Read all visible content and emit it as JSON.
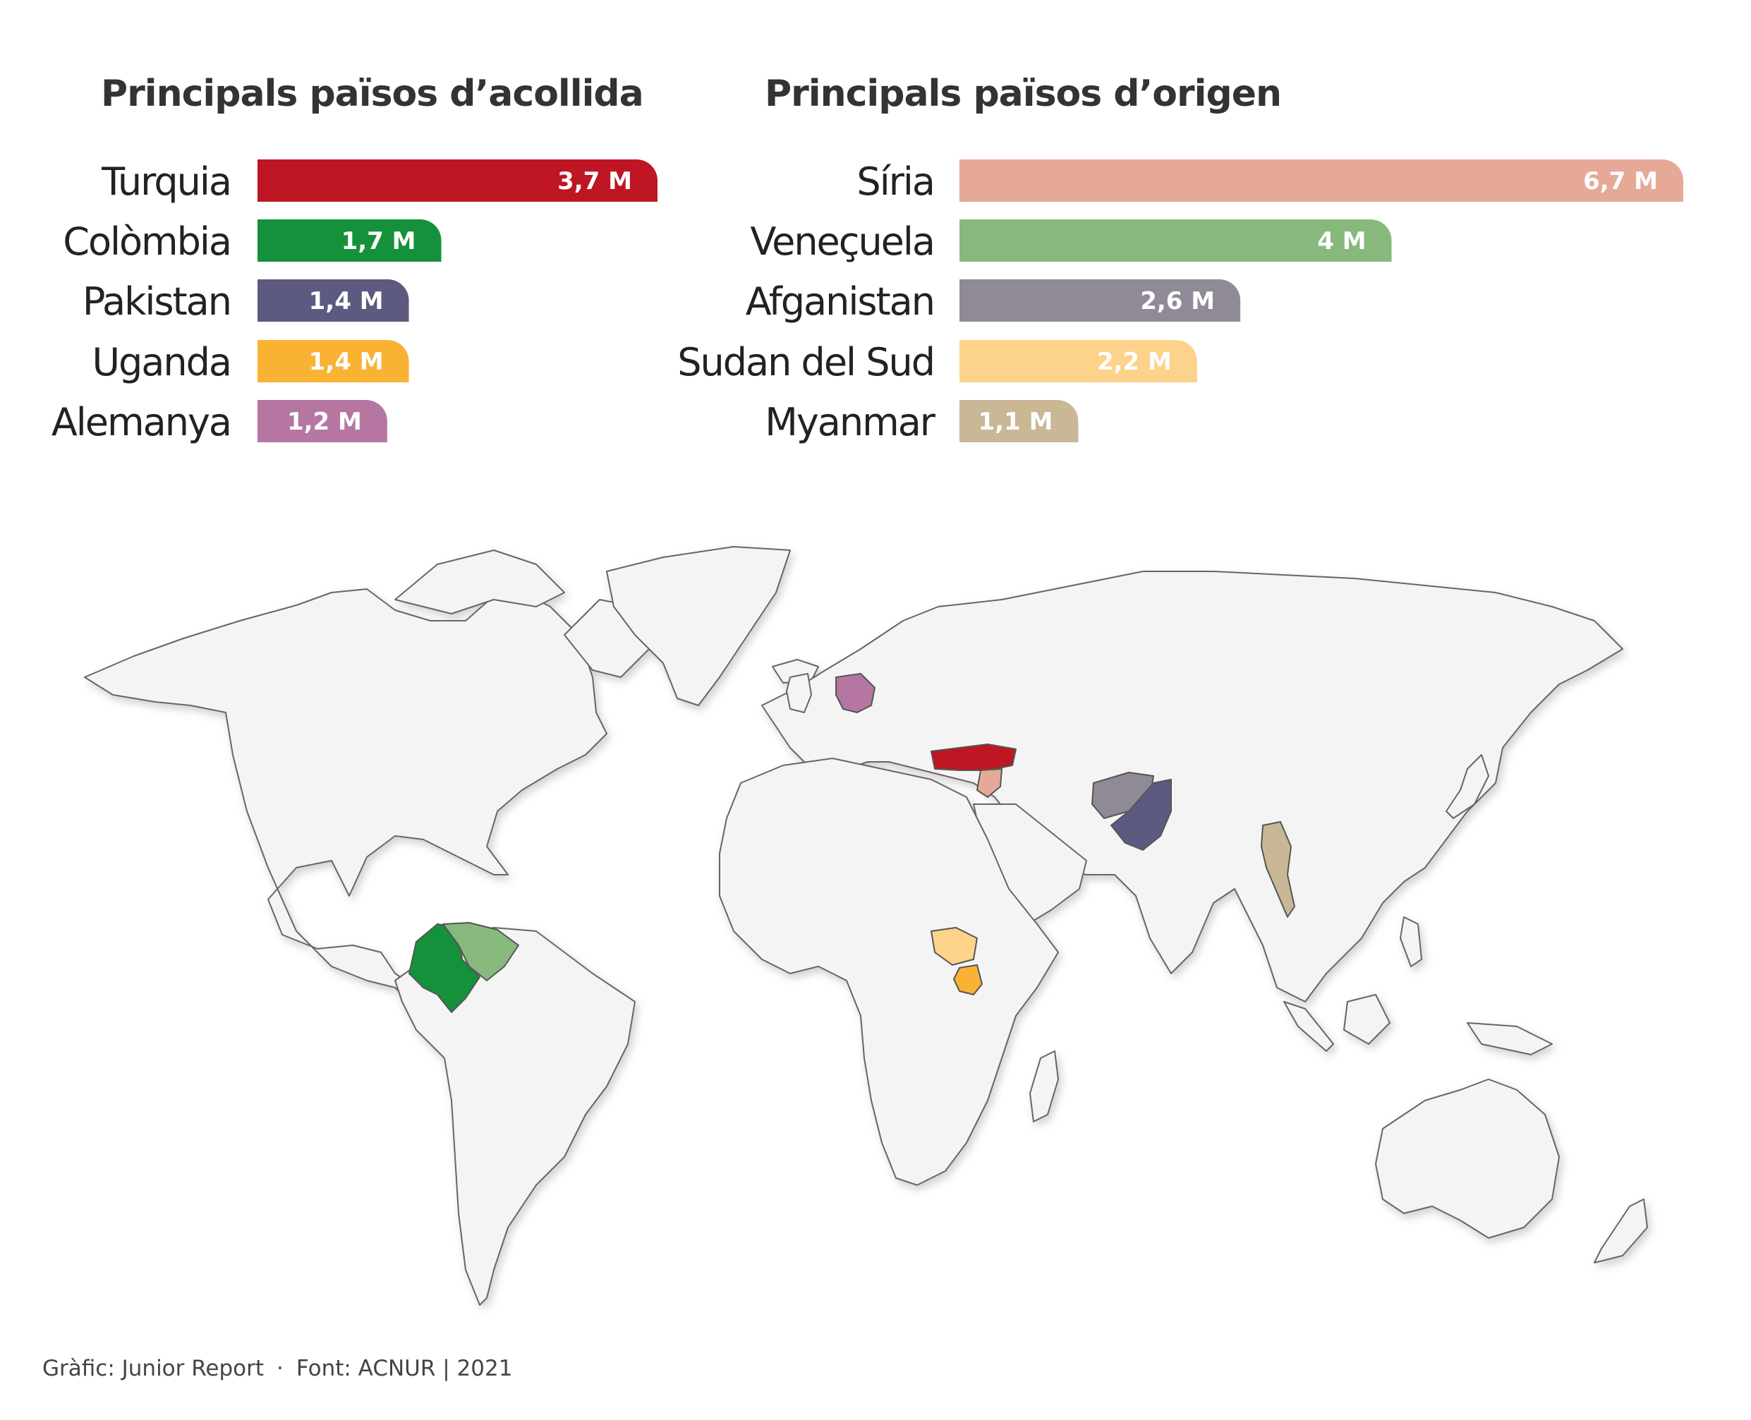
{
  "chart_data": [
    {
      "type": "bar",
      "orientation": "horizontal",
      "title": "Principals països d’acollida",
      "unit": "M",
      "categories": [
        "Turquia",
        "Colòmbia",
        "Pakistan",
        "Uganda",
        "Alemanya"
      ],
      "values": [
        3.7,
        1.7,
        1.4,
        1.4,
        1.2
      ],
      "value_labels": [
        "3,7 M",
        "1,7 M",
        "1,4 M",
        "1,4 M",
        "1,2 M"
      ],
      "colors": [
        "#be1622",
        "#14913a",
        "#5c5a80",
        "#f9b233",
        "#b576a2"
      ],
      "grid": false,
      "legend": "none"
    },
    {
      "type": "bar",
      "orientation": "horizontal",
      "title": "Principals països d’origen",
      "unit": "M",
      "categories": [
        "Síria",
        "Veneçuela",
        "Afganistan",
        "Sudan del Sud",
        "Myanmar"
      ],
      "values": [
        6.7,
        4.0,
        2.6,
        2.2,
        1.1
      ],
      "value_labels": [
        "6,7 M",
        "4 M",
        "2,6 M",
        "2,2 M",
        "1,1 M"
      ],
      "colors": [
        "#e6a897",
        "#87b97d",
        "#908a96",
        "#fdd28b",
        "#c9b796"
      ],
      "grid": false,
      "legend": "none"
    }
  ],
  "map": {
    "base_fill": "#f4f4f4",
    "border": "#666666",
    "highlight_colors": {
      "Turquia": "#be1622",
      "Colòmbia": "#14913a",
      "Pakistan": "#5c5a80",
      "Uganda": "#f9b233",
      "Alemanya": "#b576a2",
      "Síria": "#e6a897",
      "Veneçuela": "#87b97d",
      "Afganistan": "#908a96",
      "Sudan del Sud": "#fdd28b",
      "Myanmar": "#c9b796"
    }
  },
  "footer": {
    "credit": "Gràfic: Junior Report",
    "separator": "·",
    "source": "Font: ACNUR | 2021"
  }
}
